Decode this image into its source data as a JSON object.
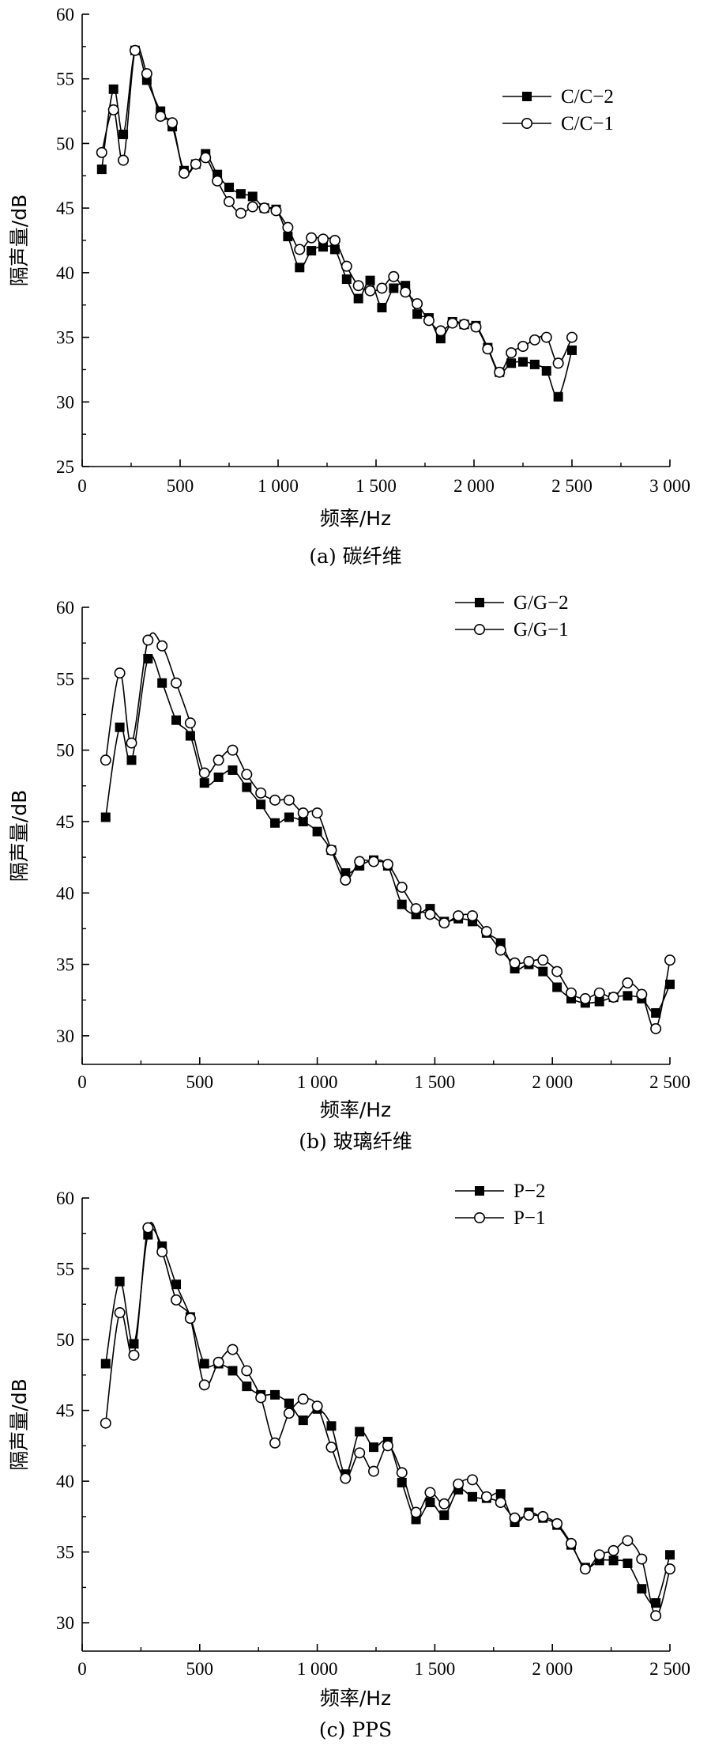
{
  "chart_data": [
    {
      "type": "line",
      "caption": "(a) 碳纤维",
      "xlabel": "频率/Hz",
      "ylabel": "隔声量/dB",
      "xlim": [
        0,
        3000
      ],
      "ylim": [
        25,
        60
      ],
      "xticks": [
        0,
        500,
        1000,
        1500,
        2000,
        2500,
        3000
      ],
      "xtick_labels": [
        "0",
        "500",
        "1 000",
        "1 500",
        "2 000",
        "2 500",
        "3 000"
      ],
      "yticks": [
        25,
        30,
        35,
        40,
        45,
        50,
        55,
        60
      ],
      "ytick_labels": [
        "25",
        "30",
        "35",
        "40",
        "45",
        "50",
        "55",
        "60"
      ],
      "grid": false,
      "legend_position": "top-right",
      "series": [
        {
          "name": "C/C−2",
          "marker": "filled-square",
          "x": [
            100,
            160,
            210,
            270,
            330,
            400,
            460,
            520,
            580,
            630,
            690,
            750,
            810,
            870,
            930,
            990,
            1050,
            1110,
            1170,
            1230,
            1290,
            1350,
            1410,
            1470,
            1530,
            1590,
            1650,
            1710,
            1770,
            1830,
            1890,
            1950,
            2010,
            2070,
            2130,
            2190,
            2250,
            2310,
            2370,
            2430,
            2500
          ],
          "y": [
            48.0,
            54.2,
            50.7,
            57.2,
            54.9,
            52.5,
            51.3,
            47.9,
            48.4,
            49.2,
            47.6,
            46.6,
            46.1,
            45.9,
            45.0,
            44.9,
            42.8,
            40.4,
            41.7,
            42.0,
            41.8,
            39.5,
            38.0,
            39.4,
            37.3,
            38.8,
            39.0,
            36.8,
            36.5,
            34.9,
            36.2,
            36.0,
            35.9,
            34.2,
            32.3,
            33.0,
            33.1,
            32.9,
            32.4,
            30.4,
            34.0
          ]
        },
        {
          "name": "C/C−1",
          "marker": "open-circle",
          "x": [
            100,
            160,
            210,
            270,
            330,
            400,
            460,
            520,
            580,
            630,
            690,
            750,
            810,
            870,
            930,
            990,
            1050,
            1110,
            1170,
            1230,
            1290,
            1350,
            1410,
            1470,
            1530,
            1590,
            1650,
            1710,
            1770,
            1830,
            1890,
            1950,
            2010,
            2070,
            2130,
            2190,
            2250,
            2310,
            2370,
            2430,
            2500
          ],
          "y": [
            49.3,
            52.6,
            48.7,
            57.2,
            55.4,
            52.1,
            51.6,
            47.7,
            48.4,
            48.9,
            47.1,
            45.5,
            44.6,
            45.1,
            45.0,
            44.8,
            43.5,
            41.8,
            42.7,
            42.6,
            42.5,
            40.5,
            39.0,
            38.6,
            38.8,
            39.7,
            38.5,
            37.6,
            36.3,
            35.5,
            36.1,
            36.0,
            35.8,
            34.1,
            32.3,
            33.8,
            34.3,
            34.8,
            35.0,
            33.0,
            35.0
          ]
        }
      ]
    },
    {
      "type": "line",
      "caption": "(b) 玻璃纤维",
      "xlabel": "频率/Hz",
      "ylabel": "隔声量/dB",
      "xlim": [
        0,
        2500
      ],
      "ylim": [
        28,
        60
      ],
      "xticks": [
        0,
        500,
        1000,
        1500,
        2000,
        2500
      ],
      "xtick_labels": [
        "0",
        "500",
        "1 000",
        "1 500",
        "2 000",
        "2 500"
      ],
      "yticks": [
        30,
        35,
        40,
        45,
        50,
        55,
        60
      ],
      "ytick_labels": [
        "30",
        "35",
        "40",
        "45",
        "50",
        "55",
        "60"
      ],
      "grid": false,
      "legend_position": "top-right",
      "series": [
        {
          "name": "G/G−2",
          "marker": "filled-square",
          "x": [
            100,
            160,
            210,
            280,
            340,
            400,
            460,
            520,
            580,
            640,
            700,
            760,
            820,
            880,
            940,
            1000,
            1060,
            1120,
            1180,
            1240,
            1300,
            1360,
            1420,
            1480,
            1540,
            1600,
            1660,
            1720,
            1780,
            1840,
            1900,
            1960,
            2020,
            2080,
            2140,
            2200,
            2260,
            2320,
            2380,
            2440,
            2500
          ],
          "y": [
            45.3,
            51.6,
            49.3,
            56.4,
            54.7,
            52.1,
            51.0,
            47.7,
            48.1,
            48.6,
            47.4,
            46.2,
            44.9,
            45.3,
            45.0,
            44.3,
            43.0,
            41.4,
            41.9,
            42.3,
            41.9,
            39.2,
            38.5,
            38.9,
            38.0,
            38.2,
            38.0,
            37.2,
            36.5,
            34.7,
            35.0,
            34.5,
            33.4,
            32.6,
            32.3,
            32.4,
            32.7,
            32.8,
            32.6,
            31.6,
            33.6
          ]
        },
        {
          "name": "G/G−1",
          "marker": "open-circle",
          "x": [
            100,
            160,
            210,
            280,
            340,
            400,
            460,
            520,
            580,
            640,
            700,
            760,
            820,
            880,
            940,
            1000,
            1060,
            1120,
            1180,
            1240,
            1300,
            1360,
            1420,
            1480,
            1540,
            1600,
            1660,
            1720,
            1780,
            1840,
            1900,
            1960,
            2020,
            2080,
            2140,
            2200,
            2260,
            2320,
            2380,
            2440,
            2500
          ],
          "y": [
            49.3,
            55.4,
            50.5,
            57.7,
            57.3,
            54.7,
            51.9,
            48.4,
            49.3,
            50.0,
            48.3,
            47.0,
            46.5,
            46.5,
            45.6,
            45.6,
            43.0,
            40.9,
            42.2,
            42.2,
            42.0,
            40.4,
            38.9,
            38.5,
            37.9,
            38.4,
            38.4,
            37.3,
            36.0,
            35.1,
            35.2,
            35.3,
            34.5,
            33.0,
            32.6,
            33.0,
            32.7,
            33.7,
            32.9,
            30.5,
            35.3
          ]
        }
      ]
    },
    {
      "type": "line",
      "caption": "(c) PPS",
      "xlabel": "频率/Hz",
      "ylabel": "隔声量/dB",
      "xlim": [
        0,
        2500
      ],
      "ylim": [
        28,
        60
      ],
      "xticks": [
        0,
        500,
        1000,
        1500,
        2000,
        2500
      ],
      "xtick_labels": [
        "0",
        "500",
        "1 000",
        "1 500",
        "2 000",
        "2 500"
      ],
      "yticks": [
        30,
        35,
        40,
        45,
        50,
        55,
        60
      ],
      "ytick_labels": [
        "30",
        "35",
        "40",
        "45",
        "50",
        "55",
        "60"
      ],
      "grid": false,
      "legend_position": "top-right",
      "series": [
        {
          "name": "P−2",
          "marker": "filled-square",
          "x": [
            100,
            160,
            220,
            280,
            340,
            400,
            460,
            520,
            580,
            640,
            700,
            760,
            820,
            880,
            940,
            1000,
            1060,
            1120,
            1180,
            1240,
            1300,
            1360,
            1420,
            1480,
            1540,
            1600,
            1660,
            1720,
            1780,
            1840,
            1900,
            1960,
            2020,
            2080,
            2140,
            2200,
            2260,
            2320,
            2380,
            2440,
            2500
          ],
          "y": [
            48.3,
            54.1,
            49.7,
            57.4,
            56.6,
            53.9,
            51.6,
            48.3,
            48.3,
            47.8,
            46.7,
            46.1,
            46.1,
            45.5,
            44.3,
            45.1,
            43.9,
            40.5,
            43.5,
            42.4,
            42.8,
            39.9,
            37.3,
            38.5,
            37.6,
            39.4,
            38.9,
            38.8,
            39.1,
            37.1,
            37.8,
            37.4,
            36.9,
            35.5,
            33.9,
            34.4,
            34.4,
            34.2,
            32.4,
            31.4,
            34.8
          ]
        },
        {
          "name": "P−1",
          "marker": "open-circle",
          "x": [
            100,
            160,
            220,
            280,
            340,
            400,
            460,
            520,
            580,
            640,
            700,
            760,
            820,
            880,
            940,
            1000,
            1060,
            1120,
            1180,
            1240,
            1300,
            1360,
            1420,
            1480,
            1540,
            1600,
            1660,
            1720,
            1780,
            1840,
            1900,
            1960,
            2020,
            2080,
            2140,
            2200,
            2260,
            2320,
            2380,
            2440,
            2500
          ],
          "y": [
            44.1,
            51.9,
            48.9,
            57.9,
            56.2,
            52.8,
            51.5,
            46.8,
            48.4,
            49.3,
            47.8,
            45.9,
            42.7,
            44.8,
            45.8,
            45.3,
            42.4,
            40.2,
            42.0,
            40.7,
            42.5,
            40.6,
            37.8,
            39.2,
            38.4,
            39.8,
            40.1,
            38.9,
            38.5,
            37.4,
            37.6,
            37.5,
            37.0,
            35.6,
            33.8,
            34.8,
            35.1,
            35.8,
            34.5,
            30.5,
            33.8
          ]
        }
      ]
    }
  ]
}
